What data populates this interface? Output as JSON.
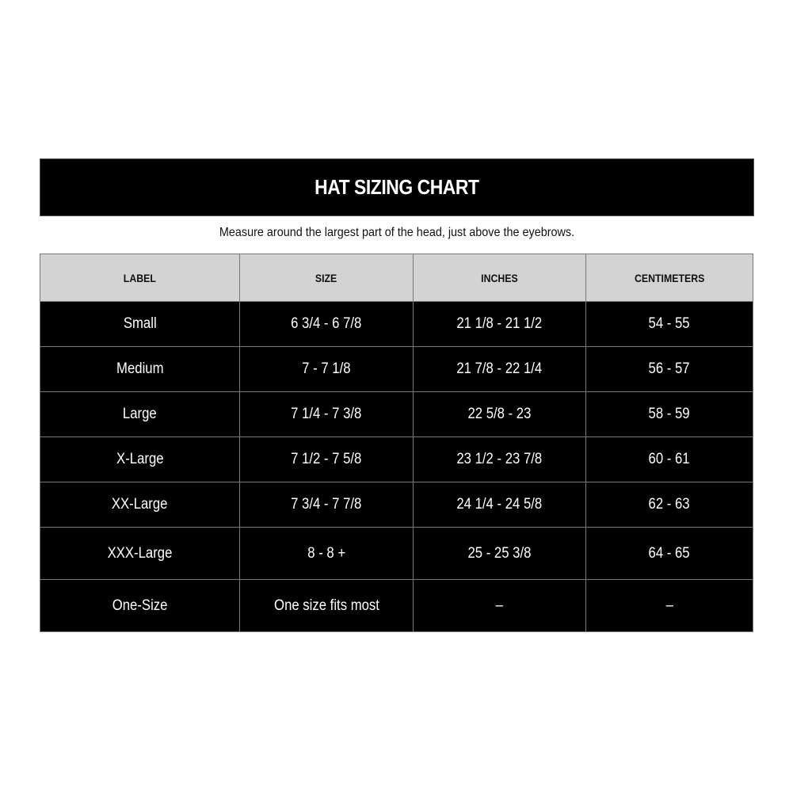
{
  "title": "HAT SIZING CHART",
  "subtitle": "Measure around the largest part of the head, just above the eyebrows.",
  "columns": [
    "LABEL",
    "SIZE",
    "INCHES",
    "CENTIMETERS"
  ],
  "rows": [
    [
      "Small",
      "6 3/4 - 6 7/8",
      "21 1/8 - 21 1/2",
      "54 - 55"
    ],
    [
      "Medium",
      "7 - 7 1/8",
      "21 7/8 - 22 1/4",
      "56 - 57"
    ],
    [
      "Large",
      "7 1/4 - 7 3/8",
      "22 5/8 - 23",
      "58 - 59"
    ],
    [
      "X-Large",
      "7 1/2 - 7 5/8",
      "23 1/2 - 23 7/8",
      "60 - 61"
    ],
    [
      "XX-Large",
      "7 3/4 - 7 7/8",
      "24 1/4 - 24 5/8",
      "62 - 63"
    ],
    [
      "XXX-Large",
      "8 - 8 +",
      "25 - 25 3/8",
      "64 - 65"
    ],
    [
      "One-Size",
      "One size fits most",
      "–",
      "–"
    ]
  ]
}
